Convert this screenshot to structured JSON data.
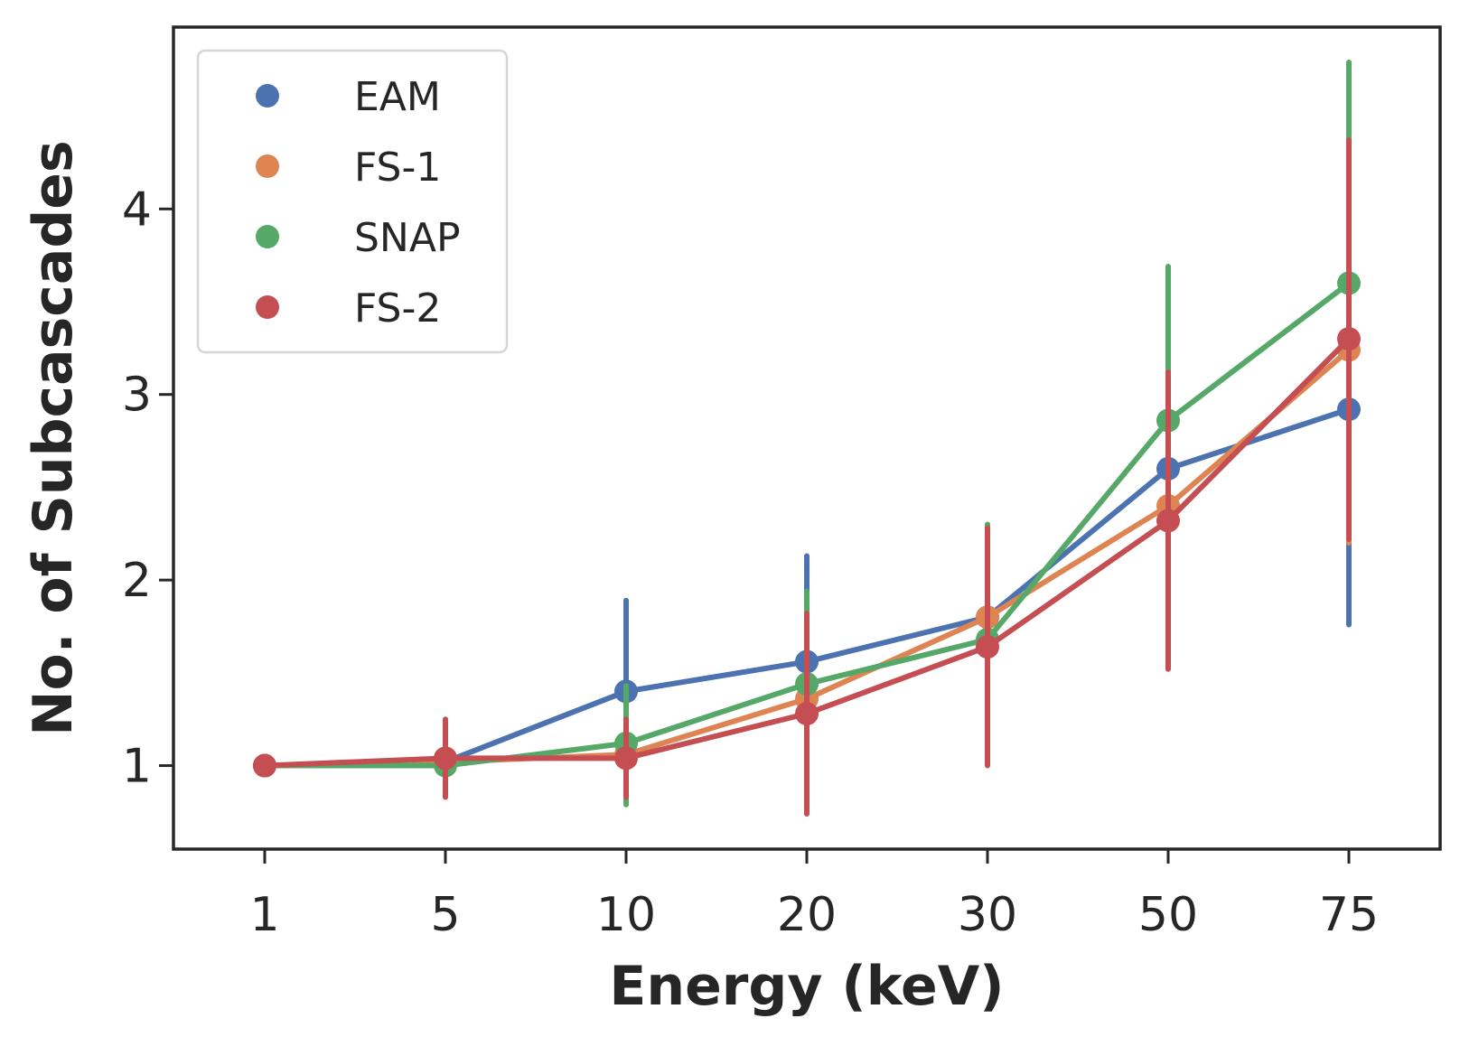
{
  "chart_data": {
    "type": "line",
    "title": "",
    "xlabel": "Energy (keV)",
    "ylabel": "No. of Subcascades",
    "categories": [
      "1",
      "5",
      "10",
      "20",
      "30",
      "50",
      "75"
    ],
    "yticks": [
      1,
      2,
      3,
      4
    ],
    "ylim": [
      0.55,
      4.98
    ],
    "grid": false,
    "legend_position": "top-left",
    "series": [
      {
        "name": "EAM",
        "color": "#4c72b0",
        "values": [
          1.0,
          1.02,
          1.4,
          1.56,
          1.8,
          2.6,
          2.92
        ],
        "err_low": [
          1.0,
          1.0,
          0.92,
          0.98,
          1.8,
          2.2,
          1.76
        ],
        "err_high": [
          1.0,
          1.08,
          1.89,
          2.13,
          1.8,
          3.0,
          4.1
        ]
      },
      {
        "name": "FS-1",
        "color": "#dd8452",
        "values": [
          1.0,
          1.02,
          1.06,
          1.36,
          1.8,
          2.4,
          3.24
        ],
        "err_low": [
          1.0,
          0.95,
          0.82,
          0.75,
          1.02,
          1.56,
          2.2
        ],
        "err_high": [
          1.0,
          1.18,
          1.3,
          1.87,
          2.26,
          3.1,
          4.3
        ]
      },
      {
        "name": "SNAP",
        "color": "#55a868",
        "values": [
          1.0,
          1.0,
          1.12,
          1.44,
          1.68,
          2.86,
          3.6
        ],
        "err_low": [
          1.0,
          0.96,
          0.79,
          0.9,
          1.02,
          1.7,
          2.38
        ],
        "err_high": [
          1.0,
          1.06,
          1.43,
          1.94,
          2.3,
          3.69,
          4.79
        ]
      },
      {
        "name": "FS-2",
        "color": "#c44e52",
        "values": [
          1.0,
          1.04,
          1.04,
          1.28,
          1.64,
          2.32,
          3.3
        ],
        "err_low": [
          1.0,
          0.83,
          0.83,
          0.74,
          1.0,
          1.52,
          2.22
        ],
        "err_high": [
          1.0,
          1.25,
          1.25,
          1.82,
          2.28,
          3.12,
          4.37
        ]
      }
    ]
  }
}
